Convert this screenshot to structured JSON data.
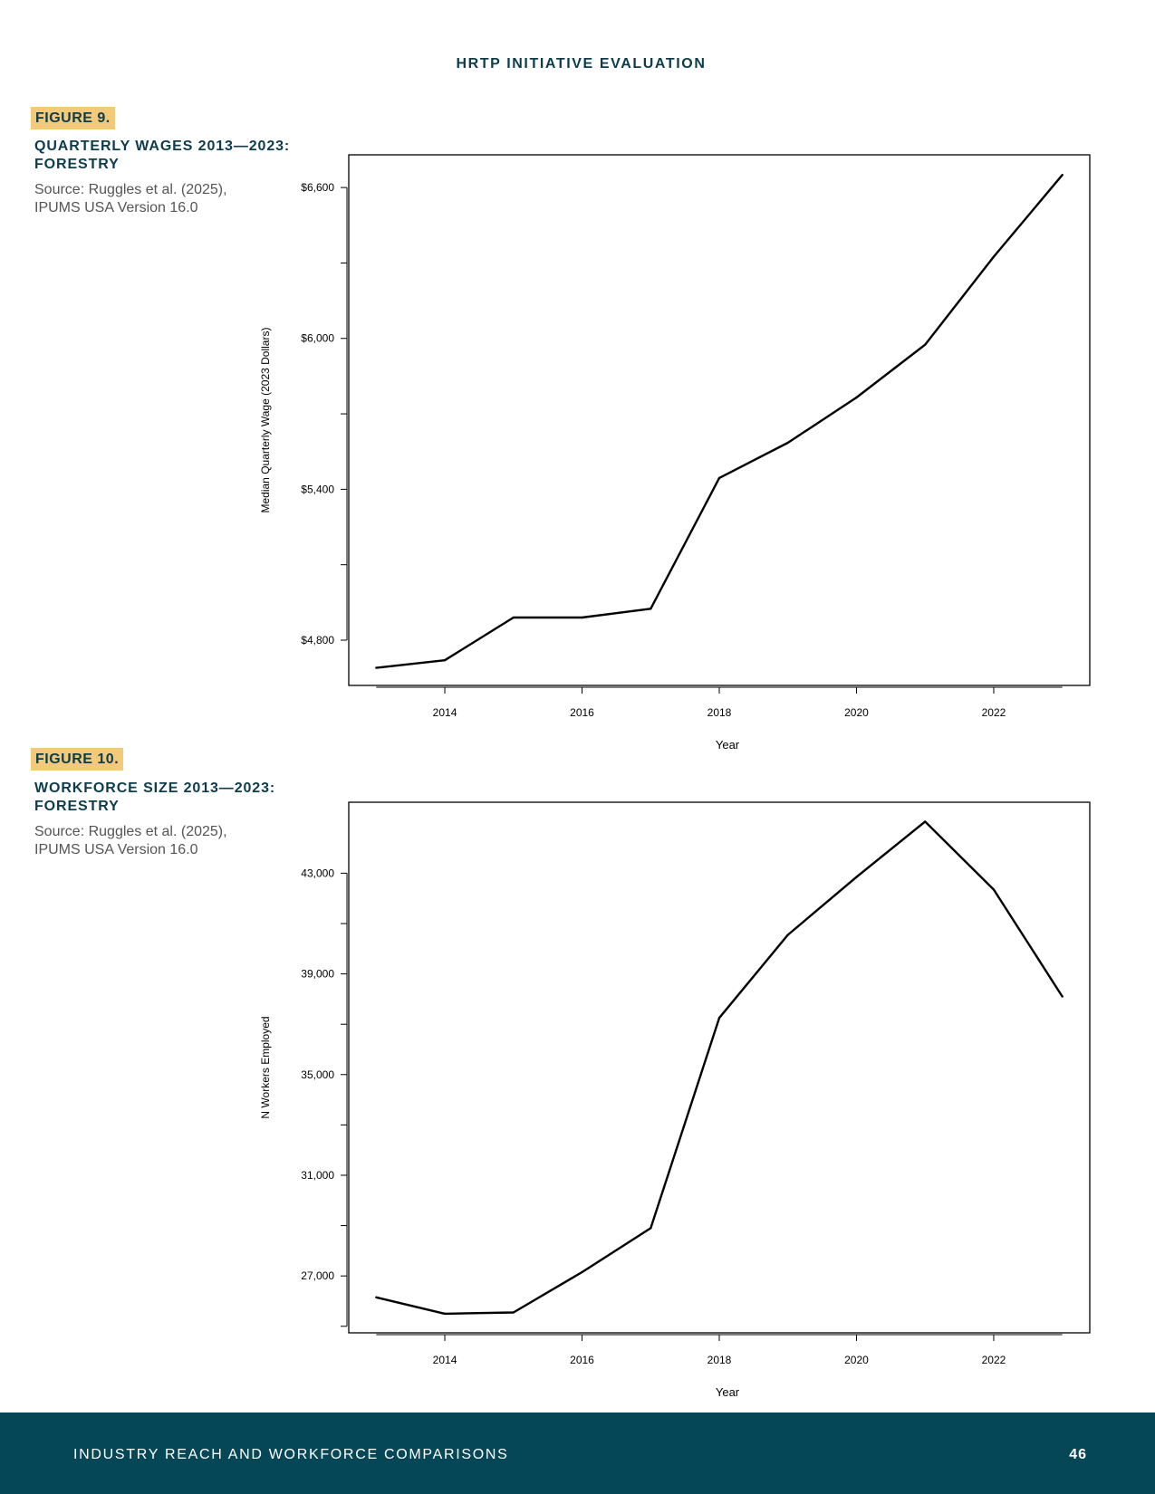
{
  "header": {
    "running_title": "HRTP INITIATIVE EVALUATION"
  },
  "figures": [
    {
      "label": "FIGURE 9.",
      "title_lines": [
        "QUARTERLY WAGES 2013—2023:",
        "FORESTRY"
      ],
      "source_lines": [
        "Source: Ruggles et al. (2025),",
        "IPUMS USA Version 16.0"
      ]
    },
    {
      "label": "FIGURE 10.",
      "title_lines": [
        "WORKFORCE SIZE 2013—2023:",
        "FORESTRY"
      ],
      "source_lines": [
        "Source: Ruggles et al. (2025),",
        "IPUMS USA Version 16.0"
      ]
    }
  ],
  "chart_data": [
    {
      "type": "line",
      "title": "QUARTERLY WAGES 2013—2023: FORESTRY",
      "xlabel": "Year",
      "ylabel": "Median Quarterly Wage (2023 Dollars)",
      "x": [
        2013,
        2014,
        2015,
        2016,
        2017,
        2018,
        2019,
        2020,
        2021,
        2022,
        2023
      ],
      "series": [
        {
          "values": [
            4690,
            4720,
            4890,
            4890,
            4925,
            5445,
            5585,
            5765,
            5975,
            6325,
            6650
          ]
        }
      ],
      "xlim": [
        2012.6,
        2023.4
      ],
      "ylim": [
        4620,
        6730
      ],
      "x_ticks": [
        2014,
        2016,
        2018,
        2020,
        2022
      ],
      "x_tick_labels": [
        "2014",
        "2016",
        "2018",
        "2020",
        "2022"
      ],
      "y_ticks": [
        4800,
        5100,
        5400,
        5700,
        6000,
        6300,
        6600
      ],
      "y_tick_labels": [
        "$4,800",
        "",
        "$5,400",
        "",
        "$6,000",
        "",
        "$6,600"
      ],
      "grid": false,
      "line_color": "#000000"
    },
    {
      "type": "line",
      "title": "WORKFORCE SIZE 2013—2023: FORESTRY",
      "xlabel": "Year",
      "ylabel": "N Workers Employed",
      "x": [
        2013,
        2014,
        2015,
        2016,
        2017,
        2018,
        2019,
        2020,
        2021,
        2022,
        2023
      ],
      "series": [
        {
          "values": [
            26150,
            25500,
            25550,
            27150,
            28900,
            37250,
            40550,
            42850,
            45050,
            42350,
            38100
          ]
        }
      ],
      "xlim": [
        2012.6,
        2023.4
      ],
      "ylim": [
        24740,
        45820
      ],
      "x_ticks": [
        2014,
        2016,
        2018,
        2020,
        2022
      ],
      "x_tick_labels": [
        "2014",
        "2016",
        "2018",
        "2020",
        "2022"
      ],
      "y_ticks": [
        25000,
        27000,
        29000,
        31000,
        33000,
        35000,
        37000,
        39000,
        41000,
        43000
      ],
      "y_tick_labels": [
        "",
        "27,000",
        "",
        "31,000",
        "",
        "35,000",
        "",
        "39,000",
        "",
        "43,000"
      ],
      "grid": false,
      "line_color": "#000000"
    }
  ],
  "footer": {
    "section_title": "INDUSTRY REACH AND WORKFORCE COMPARISONS",
    "page_number": "46"
  }
}
